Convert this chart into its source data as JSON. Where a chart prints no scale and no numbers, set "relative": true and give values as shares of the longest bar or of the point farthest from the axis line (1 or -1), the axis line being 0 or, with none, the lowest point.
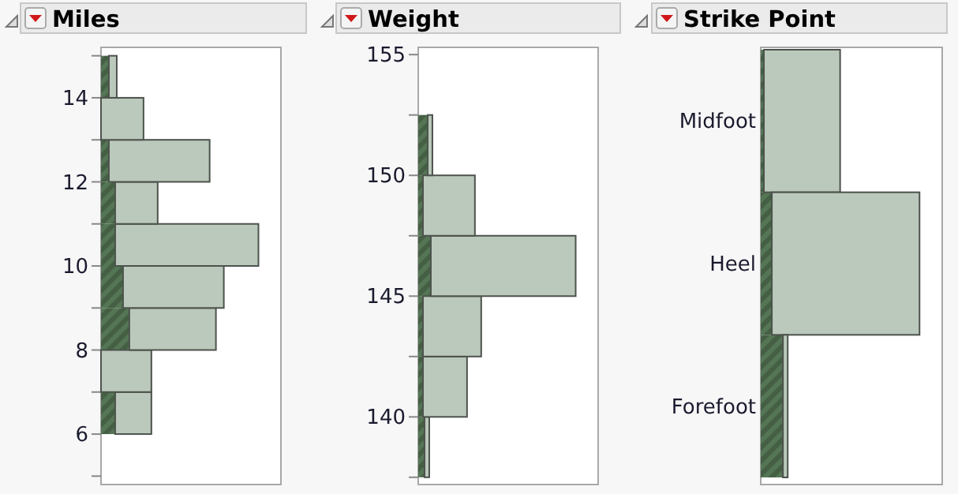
{
  "chart_data": [
    {
      "type": "bar",
      "title": "Miles",
      "orientation": "horizontal",
      "stacked": true,
      "relative": true,
      "x": [
        6.5,
        7.5,
        8.5,
        9.5,
        10.5,
        11.5,
        12.5,
        13.5,
        14.5
      ],
      "ylim": [
        4.8,
        15.2
      ],
      "yticks": [
        {
          "value": 5,
          "label": null
        },
        6,
        {
          "value": 7,
          "label": null
        },
        8,
        {
          "value": 9,
          "label": null
        },
        10,
        {
          "value": 11,
          "label": null
        },
        12,
        {
          "value": 13,
          "label": null
        },
        14,
        {
          "value": 15,
          "label": null
        }
      ],
      "series": [
        {
          "color": "#557655",
          "values": [
            0.09,
            0,
            0.18,
            0.14,
            0.09,
            0.09,
            0.05,
            0,
            0.05
          ]
        },
        {
          "color": "#bac9bb",
          "values": [
            0.23,
            0.32,
            0.55,
            0.64,
            0.91,
            0.27,
            0.64,
            0.27,
            0.05
          ]
        }
      ]
    },
    {
      "type": "bar",
      "title": "Weight",
      "orientation": "horizontal",
      "stacked": true,
      "relative": true,
      "x": [
        138.75,
        141.25,
        143.75,
        146.25,
        148.75,
        151.25
      ],
      "ylim": [
        137.2,
        155.3
      ],
      "yticks": [
        {
          "value": 137.5,
          "label": null
        },
        140,
        {
          "value": 142.5,
          "label": null
        },
        145,
        {
          "value": 147.5,
          "label": null
        },
        150,
        {
          "value": 152.5,
          "label": null
        },
        155
      ],
      "series": [
        {
          "color": "#557655",
          "values": [
            0.04,
            0.03,
            0.03,
            0.08,
            0.03,
            0.06
          ]
        },
        {
          "color": "#bac9bb",
          "values": [
            0.03,
            0.28,
            0.37,
            0.92,
            0.33,
            0.03
          ]
        }
      ]
    },
    {
      "type": "bar",
      "title": "Strike Point",
      "orientation": "horizontal",
      "stacked": true,
      "relative": true,
      "categories": [
        "Midfoot",
        "Heel",
        "Forefoot"
      ],
      "series": [
        {
          "color": "#557655",
          "values": [
            0.02,
            0.07,
            0.14
          ]
        },
        {
          "color": "#bac9bb",
          "values": [
            0.48,
            0.93,
            0.03
          ]
        }
      ]
    }
  ]
}
